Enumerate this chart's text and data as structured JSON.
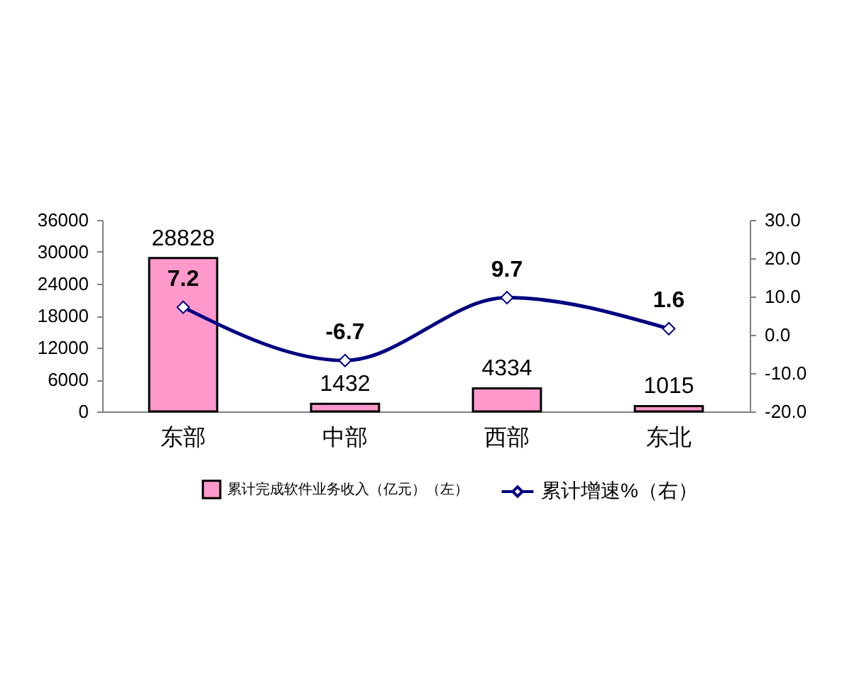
{
  "chart_data": {
    "type": "bar",
    "categories": [
      "东部",
      "中部",
      "西部",
      "东北"
    ],
    "series": [
      {
        "name": "累计完成软件业务收入（亿元）（左）",
        "color": "#ff99cc",
        "values": [
          28828,
          1432,
          4334,
          1015
        ]
      },
      {
        "name": "累计增速%（右）",
        "type": "line",
        "axis": "y2",
        "color": "#000080",
        "values": [
          7.2,
          -6.7,
          9.7,
          1.6
        ]
      }
    ],
    "ylim": [
      0,
      36000
    ],
    "yticks": [
      0,
      6000,
      12000,
      18000,
      24000,
      30000,
      36000
    ],
    "y2lim": [
      -20,
      30
    ],
    "y2ticks": [
      {
        "value": -20,
        "label": "-20.0"
      },
      {
        "value": -10,
        "label": "-10.0"
      },
      {
        "value": 0,
        "label": "0.0"
      },
      {
        "value": 10,
        "label": "10.0"
      },
      {
        "value": 20,
        "label": "20.0"
      },
      {
        "value": 30,
        "label": "30.0"
      }
    ],
    "data_labels": true,
    "legend": "bottom",
    "marker": "diamond",
    "line_style": "solid"
  }
}
